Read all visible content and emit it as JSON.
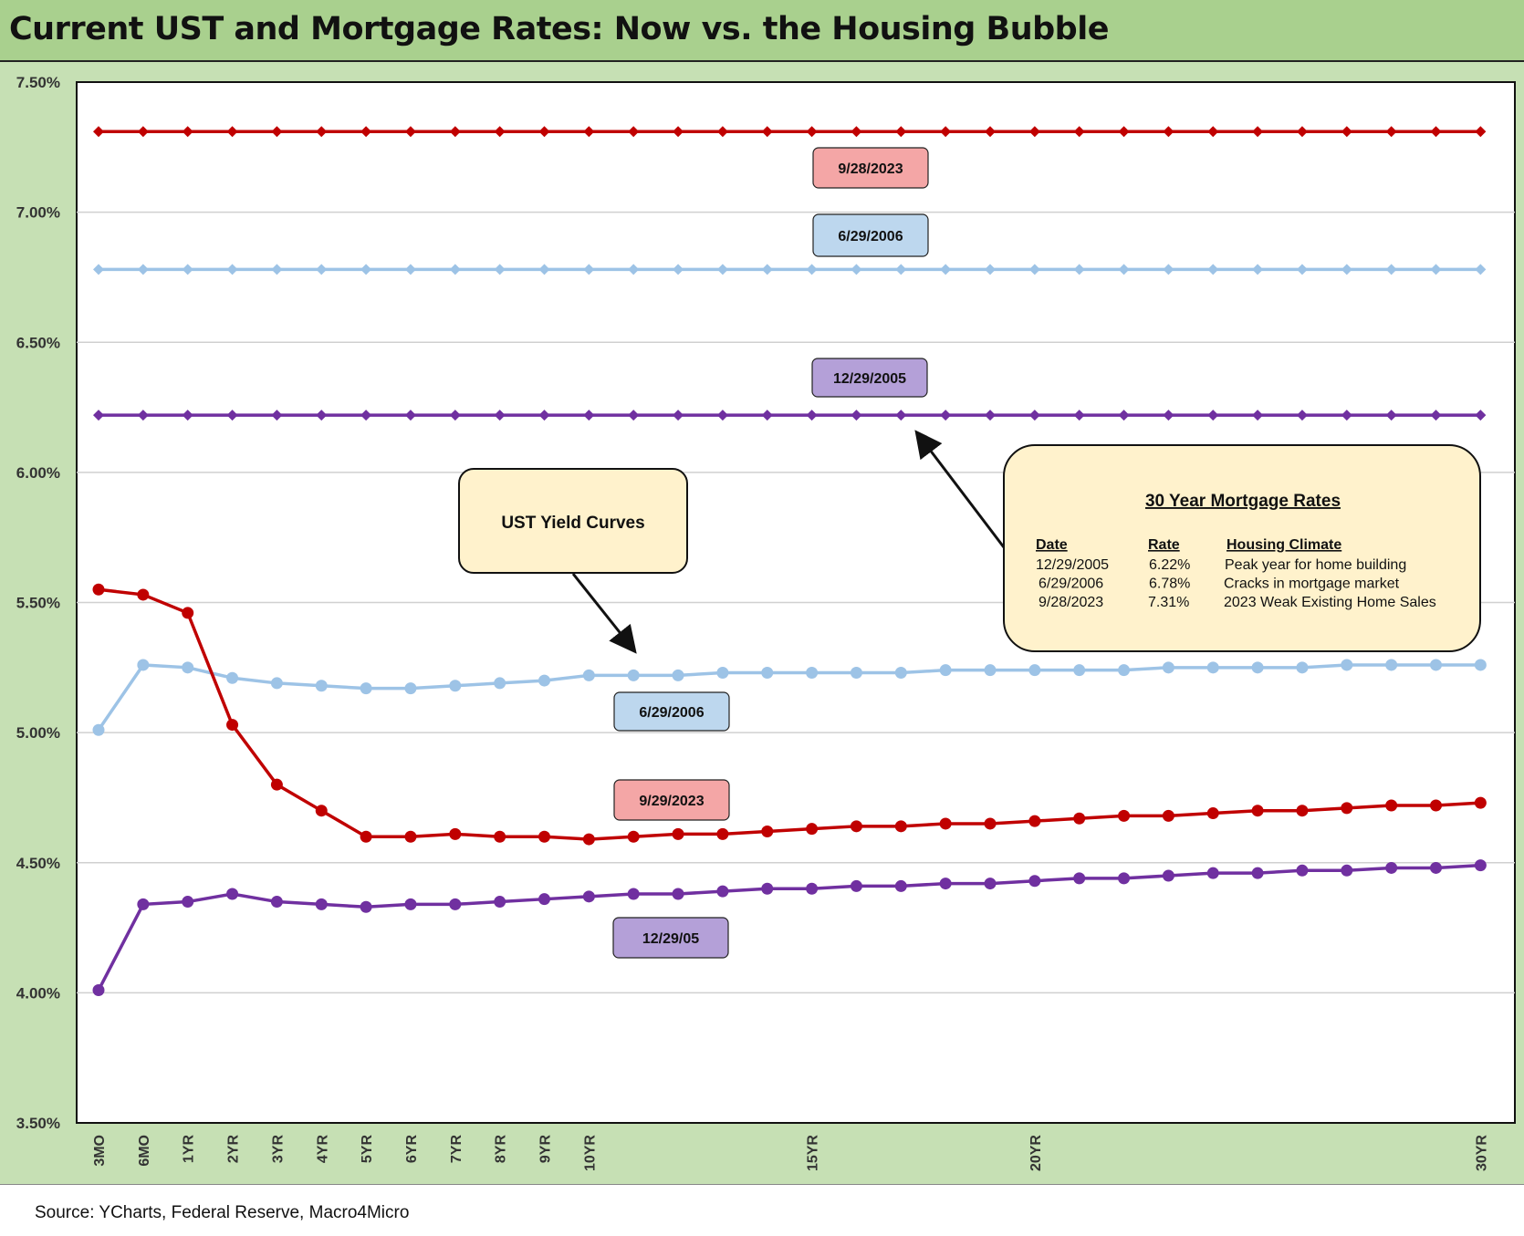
{
  "title": "Current UST and Mortgage Rates: Now vs. the Housing Bubble",
  "source": "Source: YCharts, Federal Reserve, Macro4Micro",
  "colors": {
    "red": "#c00000",
    "light_blue": "#9dc3e6",
    "purple": "#7030a0",
    "label_red": "#f4a6a6",
    "label_blue": "#bdd7ee",
    "label_purple": "#b4a0d8",
    "callout": "#fff2cc"
  },
  "chart_data": {
    "type": "line",
    "ylim": [
      3.5,
      7.5
    ],
    "grid": true,
    "y_ticks": [
      "3.50%",
      "4.00%",
      "4.50%",
      "5.00%",
      "5.50%",
      "6.00%",
      "6.50%",
      "7.00%",
      "7.50%"
    ],
    "x_tick_labels": [
      "3MO",
      "6MO",
      "1YR",
      "2YR",
      "3YR",
      "4YR",
      "5YR",
      "6YR",
      "7YR",
      "8YR",
      "9YR",
      "10YR",
      "15YR",
      "20YR",
      "30YR"
    ],
    "x_tick_index": [
      0,
      1,
      2,
      3,
      4,
      5,
      6,
      7,
      8,
      9,
      10,
      11,
      16,
      21,
      31
    ],
    "point_count": 32,
    "series": [
      {
        "name": "9/28/2023",
        "kind": "mortgage",
        "color": "#c00000",
        "value": 7.31
      },
      {
        "name": "6/29/2006",
        "kind": "mortgage",
        "color": "#9dc3e6",
        "value": 6.78
      },
      {
        "name": "12/29/2005",
        "kind": "mortgage",
        "color": "#7030a0",
        "value": 6.22
      },
      {
        "name": "6/29/2006",
        "kind": "ust",
        "color": "#9dc3e6",
        "values": [
          5.01,
          5.26,
          5.25,
          5.21,
          5.19,
          5.18,
          5.17,
          5.17,
          5.18,
          5.19,
          5.2,
          5.22,
          5.22,
          5.22,
          5.23,
          5.23,
          5.23,
          5.23,
          5.23,
          5.24,
          5.24,
          5.24,
          5.24,
          5.24,
          5.25,
          5.25,
          5.25,
          5.25,
          5.26,
          5.26,
          5.26,
          5.26
        ]
      },
      {
        "name": "9/29/2023",
        "kind": "ust",
        "color": "#c00000",
        "values": [
          5.55,
          5.53,
          5.46,
          5.03,
          4.8,
          4.7,
          4.6,
          4.6,
          4.61,
          4.6,
          4.6,
          4.59,
          4.6,
          4.61,
          4.61,
          4.62,
          4.63,
          4.64,
          4.64,
          4.65,
          4.65,
          4.66,
          4.67,
          4.68,
          4.68,
          4.69,
          4.7,
          4.7,
          4.71,
          4.72,
          4.72,
          4.73
        ]
      },
      {
        "name": "12/29/05",
        "kind": "ust",
        "color": "#7030a0",
        "values": [
          4.01,
          4.34,
          4.35,
          4.38,
          4.35,
          4.34,
          4.33,
          4.34,
          4.34,
          4.35,
          4.36,
          4.37,
          4.38,
          4.38,
          4.39,
          4.4,
          4.4,
          4.41,
          4.41,
          4.42,
          4.42,
          4.43,
          4.44,
          4.44,
          4.45,
          4.46,
          4.46,
          4.47,
          4.47,
          4.48,
          4.48,
          4.49
        ]
      }
    ],
    "annotations": {
      "mortgage_labels": [
        "9/28/2023",
        "6/29/2006",
        "12/29/2005"
      ],
      "ust_labels": [
        "6/29/2006",
        "9/29/2023",
        "12/29/05"
      ],
      "ust_callout": "UST Yield Curves",
      "mortgage_box": {
        "title": "30 Year Mortgage Rates",
        "headers": [
          "Date",
          "Rate",
          "Housing Climate"
        ],
        "rows": [
          [
            "12/29/2005",
            "6.22%",
            "Peak year for home building"
          ],
          [
            "6/29/2006",
            "6.78%",
            "Cracks in mortgage market"
          ],
          [
            "9/28/2023",
            "7.31%",
            "2023 Weak Existing Home Sales"
          ]
        ]
      }
    }
  }
}
